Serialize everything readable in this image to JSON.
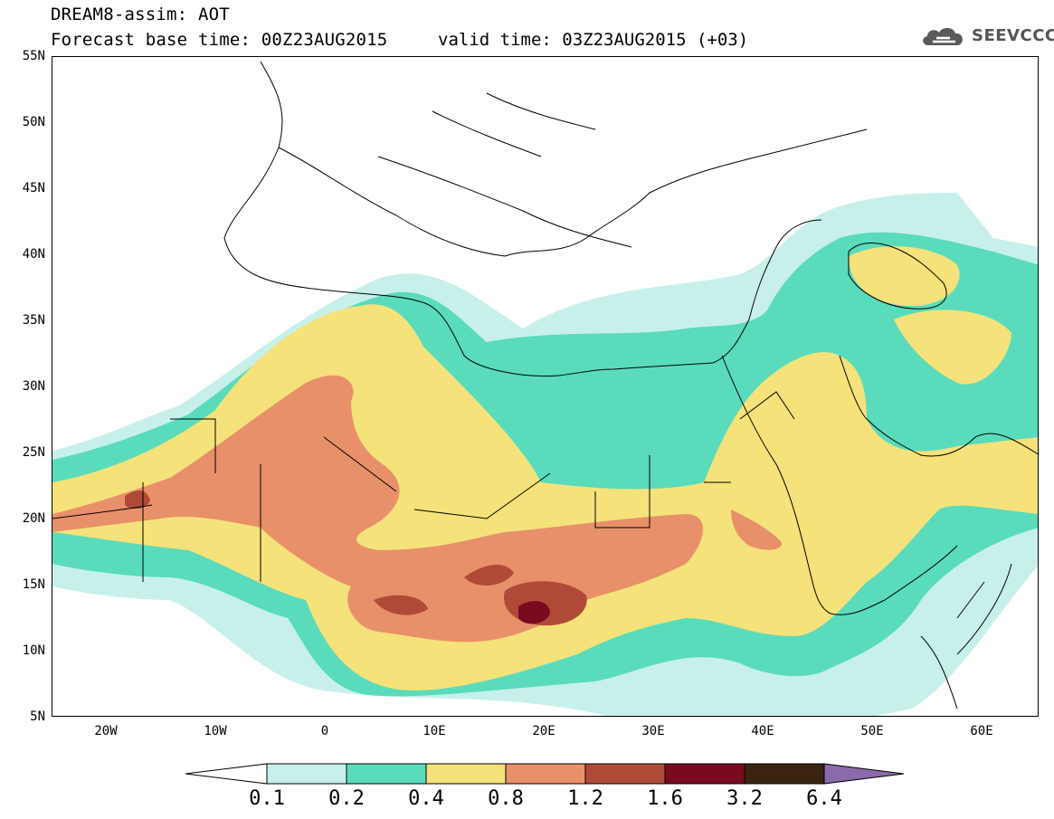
{
  "header": {
    "title": "DREAM8-assim: AOT",
    "base_time": "Forecast base time: 00Z23AUG2015",
    "valid_time": "valid time: 03Z23AUG2015 (+03)"
  },
  "logo": {
    "text": "SEEVCCC",
    "icon": "cloud-icon",
    "color": "#555555"
  },
  "map": {
    "projection": "lat-lon",
    "lon_range": [
      -25,
      65
    ],
    "lat_range": [
      5,
      55
    ],
    "lat_ticks": [
      "55N",
      "50N",
      "45N",
      "40N",
      "35N",
      "30N",
      "25N",
      "20N",
      "15N",
      "10N",
      "5N"
    ],
    "lon_ticks": [
      "20W",
      "10W",
      "0",
      "10E",
      "20E",
      "30E",
      "40E",
      "50E",
      "60E"
    ],
    "variable": "AOT"
  },
  "colorbar": {
    "labels": [
      "0.1",
      "0.2",
      "0.4",
      "0.8",
      "1.2",
      "1.6",
      "3.2",
      "6.4"
    ],
    "colors": [
      "#ffffff",
      "#c8f0ea",
      "#5adcbc",
      "#f5e27a",
      "#e8906a",
      "#b04a38",
      "#7a0a20",
      "#3a2410",
      "#8a6aaa"
    ],
    "extend": "both"
  }
}
